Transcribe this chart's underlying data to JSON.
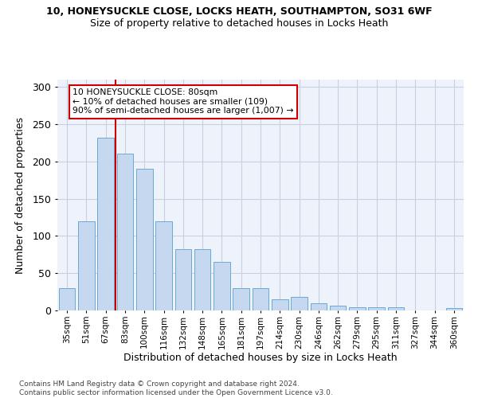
{
  "title1": "10, HONEYSUCKLE CLOSE, LOCKS HEATH, SOUTHAMPTON, SO31 6WF",
  "title2": "Size of property relative to detached houses in Locks Heath",
  "xlabel": "Distribution of detached houses by size in Locks Heath",
  "ylabel": "Number of detached properties",
  "categories": [
    "35sqm",
    "51sqm",
    "67sqm",
    "83sqm",
    "100sqm",
    "116sqm",
    "132sqm",
    "148sqm",
    "165sqm",
    "181sqm",
    "197sqm",
    "214sqm",
    "230sqm",
    "246sqm",
    "262sqm",
    "279sqm",
    "295sqm",
    "311sqm",
    "327sqm",
    "344sqm",
    "360sqm"
  ],
  "values": [
    30,
    120,
    232,
    211,
    190,
    120,
    82,
    82,
    65,
    30,
    30,
    15,
    18,
    10,
    6,
    4,
    4,
    4,
    0,
    0,
    3
  ],
  "bar_color": "#c5d8f0",
  "bar_edge_color": "#6aaad4",
  "vline_x_idx": 2,
  "vline_color": "#cc0000",
  "annotation_text": "10 HONEYSUCKLE CLOSE: 80sqm\n← 10% of detached houses are smaller (109)\n90% of semi-detached houses are larger (1,007) →",
  "annotation_box_color": "white",
  "annotation_box_edge_color": "#cc0000",
  "ylim": [
    0,
    310
  ],
  "yticks": [
    0,
    50,
    100,
    150,
    200,
    250,
    300
  ],
  "footer": "Contains HM Land Registry data © Crown copyright and database right 2024.\nContains public sector information licensed under the Open Government Licence v3.0.",
  "bg_color": "#eef2fb",
  "grid_color": "#c8cfe0"
}
